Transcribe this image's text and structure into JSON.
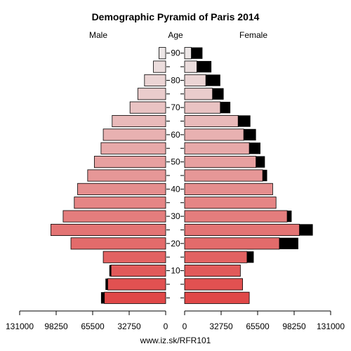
{
  "chart_data": {
    "type": "bar",
    "subtype": "population-pyramid",
    "title": "Demographic Pyramid of Paris 2014",
    "left_header": "Male",
    "center_header": "Age",
    "right_header": "Female",
    "footer": "www.iz.sk/RFR101",
    "age_ticks": [
      "10",
      "20",
      "30",
      "40",
      "50",
      "60",
      "70",
      "80",
      "90"
    ],
    "x_ticks_left": [
      "131000",
      "98250",
      "65500",
      "32750",
      "0"
    ],
    "x_ticks_right": [
      "0",
      "32750",
      "65500",
      "98250",
      "131000"
    ],
    "xlim": [
      0,
      131000
    ],
    "age_groups": [
      "0-4",
      "5-9",
      "10-14",
      "15-19",
      "20-24",
      "25-29",
      "30-34",
      "35-39",
      "40-44",
      "45-49",
      "50-54",
      "55-59",
      "60-64",
      "65-69",
      "70-74",
      "75-79",
      "80-84",
      "85-89",
      "90+"
    ],
    "male": {
      "values": [
        55000,
        52000,
        49000,
        56000,
        85000,
        103000,
        92000,
        82000,
        79000,
        70000,
        64000,
        58000,
        56000,
        48000,
        32000,
        25000,
        19000,
        11000,
        6000
      ],
      "excess": [
        3000,
        2000,
        1500,
        0,
        0,
        0,
        0,
        0,
        0,
        0,
        0,
        0,
        0,
        0,
        0,
        0,
        0,
        0,
        0
      ]
    },
    "female": {
      "values": [
        58000,
        52000,
        50000,
        56000,
        85000,
        103000,
        92000,
        82000,
        79000,
        70000,
        64000,
        58000,
        53000,
        48000,
        32000,
        25000,
        19000,
        11000,
        6000
      ],
      "excess": [
        0,
        0,
        0,
        6000,
        17000,
        12000,
        4000,
        0,
        0,
        4000,
        8000,
        10000,
        11000,
        11000,
        9000,
        10000,
        13000,
        13000,
        10000
      ]
    },
    "colors": {
      "excess": "#000000",
      "outline": "#000000",
      "young": "#e04848",
      "old": "#ece6e6"
    }
  }
}
